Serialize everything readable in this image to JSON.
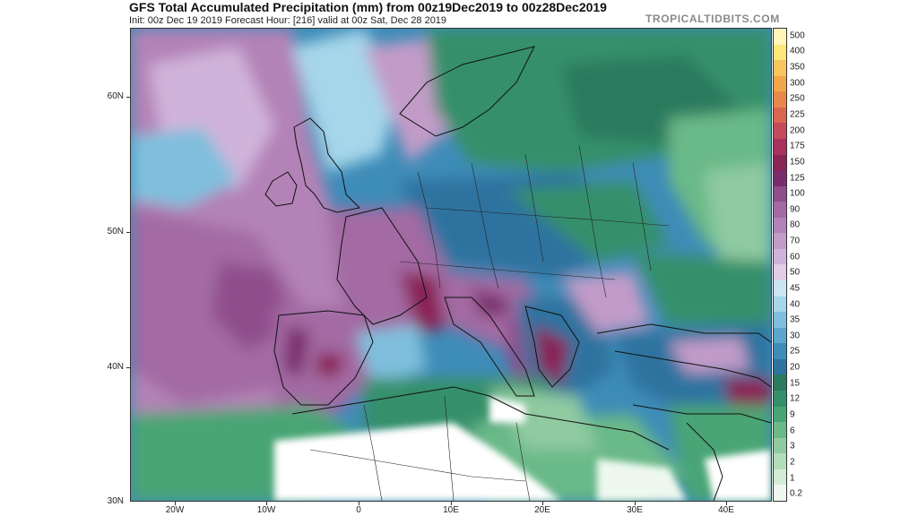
{
  "header": {
    "title": "GFS Total Accumulated Precipitation (mm) from 00z19Dec2019 to 00z28Dec2019",
    "subtitle": "Init: 00z Dec 19 2019   Forecast Hour: [216]   valid at 00z Sat, Dec 28 2019",
    "brand": "TROPICALTIDBITS.COM"
  },
  "map": {
    "lat_labels": [
      "60N",
      "50N",
      "40N",
      "30N"
    ],
    "lon_labels": [
      "20W",
      "10W",
      "0",
      "10E",
      "20E",
      "30E",
      "40E"
    ],
    "extent": {
      "lon_min": -25,
      "lon_max": 45,
      "lat_min": 30,
      "lat_max": 65
    }
  },
  "legend": {
    "unit": "mm",
    "levels": [
      "500",
      "400",
      "350",
      "300",
      "250",
      "225",
      "200",
      "175",
      "150",
      "125",
      "100",
      "90",
      "80",
      "70",
      "60",
      "50",
      "45",
      "40",
      "35",
      "30",
      "25",
      "20",
      "15",
      "12",
      "9",
      "6",
      "3",
      "2",
      "1",
      "0.2"
    ],
    "colors": [
      "#fff6b8",
      "#fde67a",
      "#f7c65e",
      "#f2a64a",
      "#e8884a",
      "#d9664f",
      "#c44b5c",
      "#a8325f",
      "#8a2356",
      "#7a2d6b",
      "#8f4e8c",
      "#a36aa3",
      "#b382b6",
      "#c29bc8",
      "#d0b3da",
      "#e2cde9",
      "#c9e6f2",
      "#a6d6ea",
      "#7fbfdd",
      "#5ba6cc",
      "#3e8cb8",
      "#2d73a0",
      "#2b7a5e",
      "#34906a",
      "#49a574",
      "#6bb988",
      "#8fcaa0",
      "#b3dcb9",
      "#d3ecd6",
      "#eef8ee"
    ]
  }
}
